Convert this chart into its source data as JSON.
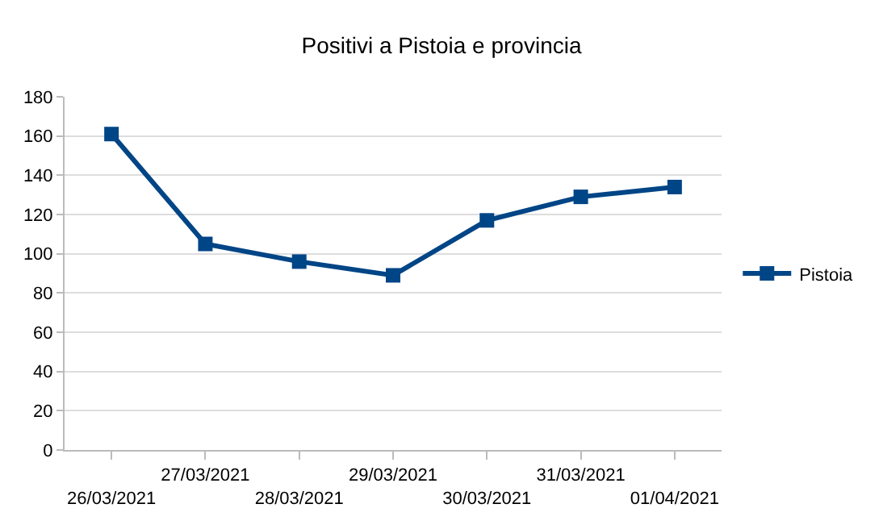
{
  "chart_data": {
    "type": "line",
    "title": "Positivi a Pistoia e provincia",
    "categories": [
      "26/03/2021",
      "27/03/2021",
      "28/03/2021",
      "29/03/2021",
      "30/03/2021",
      "31/03/2021",
      "01/04/2021"
    ],
    "series": [
      {
        "name": "Pistoia",
        "color": "#004586",
        "values": [
          161,
          105,
          96,
          89,
          117,
          129,
          134
        ]
      }
    ],
    "ylim": [
      0,
      180
    ],
    "yticks": [
      0,
      20,
      40,
      60,
      80,
      100,
      120,
      140,
      160,
      180
    ],
    "grid": "y",
    "legend": "right",
    "marker": "square",
    "line_style": "solid"
  }
}
